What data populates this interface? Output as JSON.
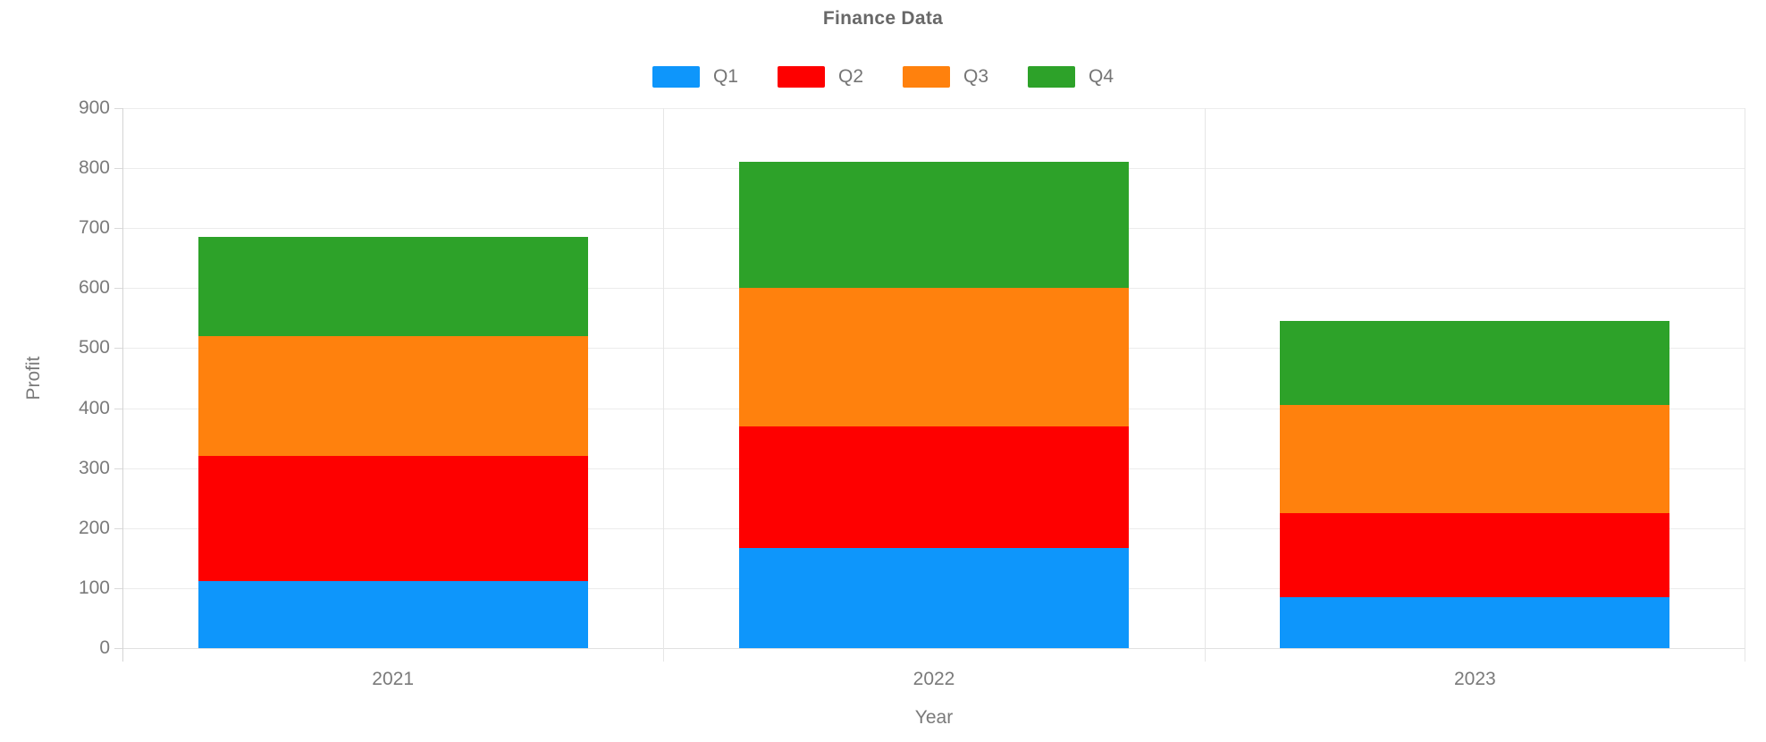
{
  "chart_data": {
    "type": "bar",
    "stacked": true,
    "title": "Finance Data",
    "xlabel": "Year",
    "ylabel": "Profit",
    "categories": [
      "2021",
      "2022",
      "2023"
    ],
    "series": [
      {
        "name": "Q1",
        "color": "#0e96fb",
        "values": [
          112,
          167,
          85
        ]
      },
      {
        "name": "Q2",
        "color": "#fe0000",
        "values": [
          208,
          203,
          140
        ]
      },
      {
        "name": "Q3",
        "color": "#ff810d",
        "values": [
          200,
          230,
          180
        ]
      },
      {
        "name": "Q4",
        "color": "#2da229",
        "values": [
          165,
          210,
          140
        ]
      }
    ],
    "stack_totals": [
      685,
      810,
      545
    ],
    "cumulative_boundaries": {
      "2021": [
        112,
        320,
        520,
        685
      ],
      "2022": [
        167,
        370,
        600,
        810
      ],
      "2023": [
        85,
        225,
        405,
        545
      ]
    },
    "ylim": [
      0,
      900
    ],
    "yticks": [
      0,
      100,
      200,
      300,
      400,
      500,
      600,
      700,
      800,
      900
    ],
    "grid": true,
    "legend_position": "top-center",
    "axis_text_color": "#7a7a7a",
    "title_color": "#686868",
    "gridline_color": "#ececec"
  }
}
